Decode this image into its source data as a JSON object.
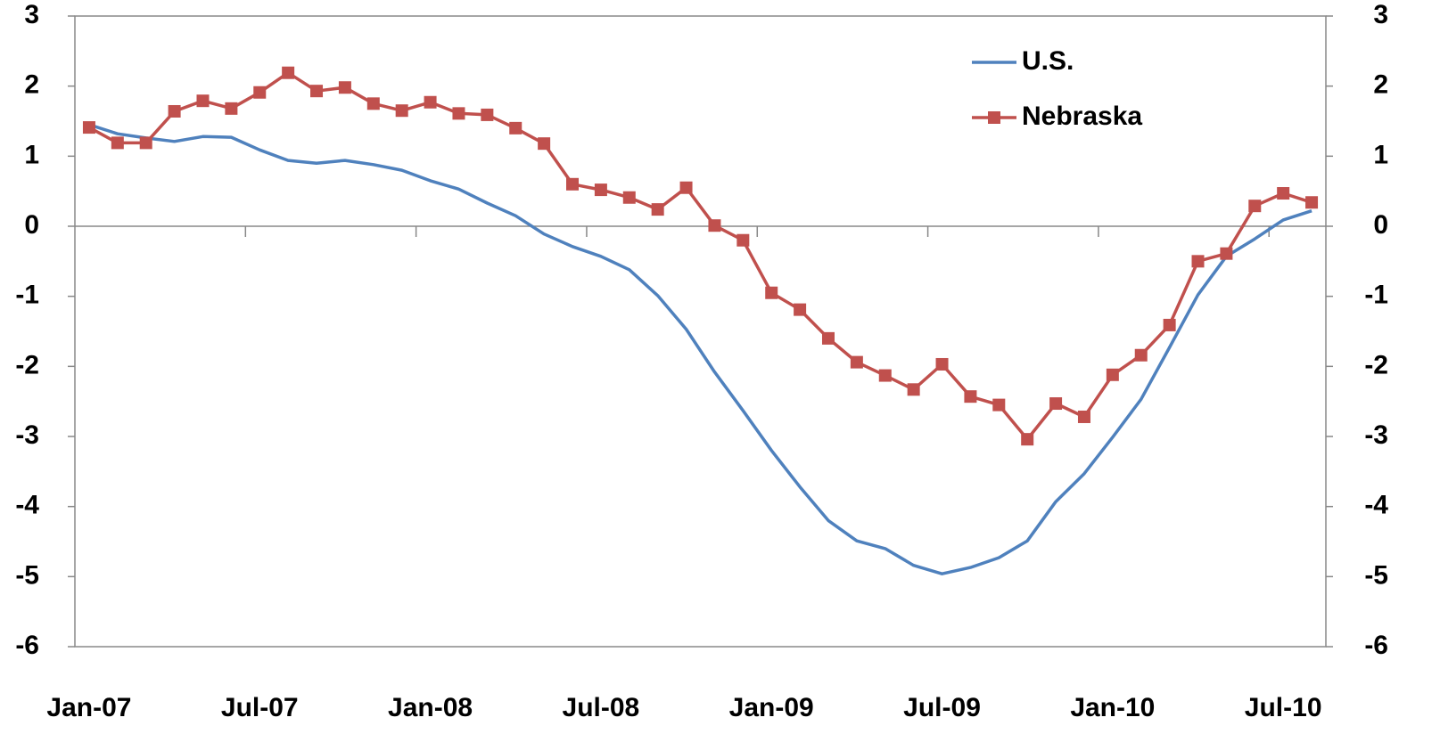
{
  "chart_data": {
    "type": "line",
    "categories": [
      "Jan-07",
      null,
      null,
      null,
      null,
      null,
      "Jul-07",
      null,
      null,
      null,
      null,
      null,
      "Jan-08",
      null,
      null,
      null,
      null,
      null,
      "Jul-08",
      null,
      null,
      null,
      null,
      null,
      "Jan-09",
      null,
      null,
      null,
      null,
      null,
      "Jul-09",
      null,
      null,
      null,
      null,
      null,
      "Jan-10",
      null,
      null,
      null,
      null,
      null,
      "Jul-10",
      null
    ],
    "series": [
      {
        "name": "U.S.",
        "color": "#4f81bd",
        "marker": false,
        "values": [
          1.45,
          1.32,
          1.26,
          1.21,
          1.28,
          1.27,
          1.09,
          0.94,
          0.9,
          0.94,
          0.88,
          0.8,
          0.65,
          0.53,
          0.33,
          0.15,
          -0.11,
          -0.29,
          -0.43,
          -0.62,
          -0.99,
          -1.47,
          -2.08,
          -2.63,
          -3.2,
          -3.72,
          -4.2,
          -4.49,
          -4.6,
          -4.84,
          -4.96,
          -4.87,
          -4.73,
          -4.49,
          -3.93,
          -3.53,
          -3.01,
          -2.47,
          -1.73,
          -0.98,
          -0.43,
          -0.18,
          0.09,
          0.22
        ]
      },
      {
        "name": "Nebraska",
        "color": "#c0504d",
        "marker": true,
        "values": [
          1.41,
          1.19,
          1.19,
          1.64,
          1.79,
          1.68,
          1.91,
          2.19,
          1.93,
          1.98,
          1.75,
          1.65,
          1.77,
          1.61,
          1.59,
          1.4,
          1.18,
          0.6,
          0.52,
          0.41,
          0.24,
          0.55,
          0.01,
          -0.2,
          -0.95,
          -1.19,
          -1.6,
          -1.94,
          -2.13,
          -2.33,
          -1.97,
          -2.43,
          -2.55,
          -3.04,
          -2.53,
          -2.72,
          -2.12,
          -1.84,
          -1.41,
          -0.5,
          -0.39,
          0.29,
          0.47,
          0.34
        ]
      }
    ],
    "ylim": [
      -6,
      3
    ],
    "yticks": [
      -6,
      -5,
      -4,
      -3,
      -2,
      -1,
      0,
      1,
      2,
      3
    ],
    "y2lim": [
      -6,
      3
    ],
    "y2ticks": [
      -6,
      -5,
      -4,
      -3,
      -2,
      -1,
      0,
      1,
      2,
      3
    ],
    "legend": "top-right"
  }
}
